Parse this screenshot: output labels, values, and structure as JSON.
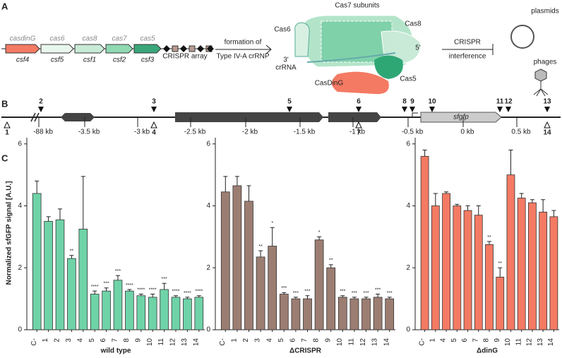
{
  "panel_a": {
    "letter": "A",
    "genes": [
      {
        "name": "casdinG",
        "alias": "csf4"
      },
      {
        "name": "cas6",
        "alias": "csf5"
      },
      {
        "name": "cas8",
        "alias": "csf1"
      },
      {
        "name": "cas7",
        "alias": "csf2"
      },
      {
        "name": "cas5",
        "alias": "csf3"
      }
    ],
    "array_label": "CRISPR array",
    "step1": [
      "formation of",
      "Type IV-A crRNP"
    ],
    "complex_labels": [
      "Cas7 subunits",
      "Cas6",
      "3'",
      "crRNA",
      "Cas8",
      "5'",
      "Cas5",
      "CasDinG"
    ],
    "step2": [
      "CRISPR",
      "interference"
    ],
    "targets": [
      "plasmids",
      "phages"
    ]
  },
  "panel_b": {
    "letter": "B",
    "sites": [
      "1",
      "2",
      "3",
      "4",
      "5",
      "6",
      "7",
      "8",
      "9",
      "10",
      "11",
      "12",
      "13",
      "14"
    ],
    "scale": [
      "-88 kb",
      "-3.5 kb",
      "-3 kb",
      "-2.5 kb",
      "-2 kb",
      "-1.5 kb",
      "-1 kb",
      "-0.5 kb",
      "0 kb",
      "0.5 kb"
    ],
    "reporter": "sfgfp"
  },
  "panel_c": {
    "letter": "C",
    "ylabel": "Normalized sfGFP signal [A.U.]"
  },
  "chart_data": [
    {
      "type": "bar",
      "xlabel": "wild type",
      "color": "#6fd3a8",
      "categories": [
        "C-",
        "1",
        "2",
        "3",
        "4",
        "5",
        "6",
        "7",
        "8",
        "9",
        "10",
        "11",
        "12",
        "13",
        "14"
      ],
      "values": [
        4.4,
        3.5,
        3.55,
        2.3,
        3.25,
        1.15,
        1.25,
        1.6,
        1.25,
        1.1,
        1.05,
        1.3,
        1.05,
        1.0,
        1.05
      ],
      "errors": [
        0.4,
        0.15,
        0.35,
        0.1,
        1.7,
        0.1,
        0.1,
        0.15,
        0.05,
        0.05,
        0.1,
        0.2,
        0.05,
        0.05,
        0.05
      ],
      "annotations": [
        null,
        null,
        null,
        "**",
        null,
        "****",
        "***",
        "***",
        "****",
        "****",
        "****",
        "***",
        "****",
        "****",
        "****"
      ],
      "ylim": [
        0,
        6.2
      ],
      "yticks": [
        0,
        2,
        4,
        6
      ]
    },
    {
      "type": "bar",
      "xlabel": "ΔCRISPR",
      "color": "#9c7d72",
      "categories": [
        "C-",
        "1",
        "2",
        "3",
        "4",
        "5",
        "6",
        "7",
        "8",
        "9",
        "10",
        "11",
        "12",
        "13",
        "14"
      ],
      "values": [
        4.45,
        4.65,
        4.15,
        2.35,
        2.7,
        1.15,
        1.0,
        1.0,
        2.9,
        2.0,
        1.05,
        1.0,
        1.0,
        1.05,
        1.0
      ],
      "errors": [
        0.5,
        0.3,
        0.5,
        0.2,
        0.6,
        0.05,
        0.05,
        0.1,
        0.1,
        0.1,
        0.05,
        0.05,
        0.05,
        0.1,
        0.05
      ],
      "annotations": [
        null,
        null,
        null,
        "**",
        "*",
        "***",
        "***",
        "***",
        "*",
        "**",
        "***",
        "***",
        "***",
        "***",
        "***"
      ],
      "ylim": [
        0,
        6.2
      ],
      "yticks": [
        0,
        2,
        4,
        6
      ]
    },
    {
      "type": "bar",
      "xlabel": "ΔdinG",
      "color": "#f47a63",
      "categories": [
        "C-",
        "1",
        "4",
        "5",
        "6",
        "7",
        "8",
        "9",
        "10",
        "11",
        "12",
        "13",
        "14"
      ],
      "values": [
        5.6,
        4.0,
        4.4,
        4.0,
        3.85,
        3.7,
        2.75,
        1.7,
        5.0,
        4.25,
        4.1,
        3.8,
        3.65
      ],
      "errors": [
        0.2,
        0.4,
        0.05,
        0.05,
        0.15,
        0.3,
        0.1,
        0.3,
        0.8,
        0.15,
        0.1,
        0.4,
        0.2
      ],
      "annotations": [
        null,
        null,
        null,
        null,
        null,
        null,
        "**",
        "**",
        null,
        null,
        null,
        null,
        null
      ],
      "ylim": [
        0,
        6.2
      ],
      "yticks": [
        0,
        2,
        4,
        6
      ]
    }
  ]
}
